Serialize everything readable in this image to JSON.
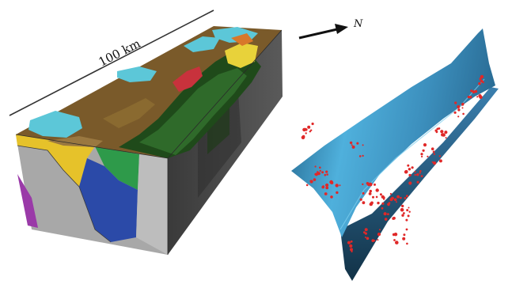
{
  "scale_bar": {
    "label": "100 km"
  },
  "north_arrow": {
    "label": "N"
  },
  "colors": {
    "block_top_base": "#7a5a2a",
    "block_top_cyan": "#5cc7d8",
    "block_top_dark_green": "#1f4a1a",
    "block_top_red": "#c8323c",
    "block_top_yellow": "#e8d23a",
    "block_front_yellow": "#e6c22a",
    "block_front_blue": "#2b4aa8",
    "block_front_green": "#2e9a4a",
    "block_front_purple": "#9a3aa8",
    "block_front_grey": "#a8a8a8",
    "block_side_dark": "#4a4a4a",
    "surface_light": "#5ab8e0",
    "surface_dark": "#1c4a6a",
    "seismic_points": "#e02828",
    "scale_line": "#333333",
    "arrow": "#111111"
  }
}
